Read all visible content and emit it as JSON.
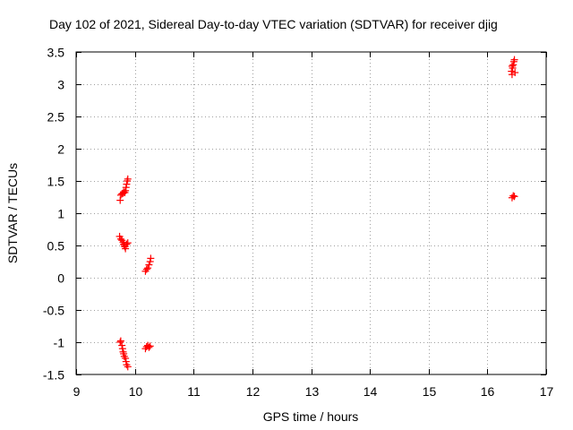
{
  "chart_data": {
    "type": "scatter",
    "title": "Day 102 of 2021, Sidereal Day-to-day VTEC variation (SDTVAR) for receiver djig",
    "xlabel": "GPS time / hours",
    "ylabel": "SDTVAR / TECUs",
    "xlim": [
      9,
      17
    ],
    "ylim": [
      -1.5,
      3.5
    ],
    "xticks": [
      "9",
      "10",
      "11",
      "12",
      "13",
      "14",
      "15",
      "16",
      "17"
    ],
    "yticks": [
      "-1.5",
      "-1",
      "-0.5",
      "0",
      "0.5",
      "1",
      "1.5",
      "2",
      "2.5",
      "3",
      "3.5"
    ],
    "grid": true,
    "marker": "plus",
    "marker_color": "#ff0000",
    "series": [
      {
        "points": [
          [
            9.75,
            1.2
          ],
          [
            9.76,
            1.28
          ],
          [
            9.78,
            1.3
          ],
          [
            9.8,
            1.31
          ],
          [
            9.81,
            1.33
          ],
          [
            9.83,
            1.32
          ],
          [
            9.84,
            1.35
          ],
          [
            9.85,
            1.4
          ],
          [
            9.86,
            1.45
          ],
          [
            9.87,
            1.5
          ],
          [
            9.88,
            1.53
          ],
          [
            9.74,
            0.64
          ],
          [
            9.76,
            0.6
          ],
          [
            9.78,
            0.58
          ],
          [
            9.8,
            0.55
          ],
          [
            9.81,
            0.52
          ],
          [
            9.82,
            0.5
          ],
          [
            9.83,
            0.48
          ],
          [
            9.84,
            0.45
          ],
          [
            9.86,
            0.52
          ],
          [
            9.88,
            0.54
          ],
          [
            9.75,
            -1.0
          ],
          [
            9.76,
            -0.98
          ],
          [
            9.78,
            -1.05
          ],
          [
            9.79,
            -1.1
          ],
          [
            9.8,
            -1.15
          ],
          [
            9.81,
            -1.18
          ],
          [
            9.82,
            -1.22
          ],
          [
            9.84,
            -1.25
          ],
          [
            9.85,
            -1.3
          ],
          [
            9.86,
            -1.35
          ],
          [
            9.88,
            -1.38
          ],
          [
            10.18,
            0.1
          ],
          [
            10.2,
            0.13
          ],
          [
            10.22,
            0.15
          ],
          [
            10.24,
            0.2
          ],
          [
            10.26,
            0.25
          ],
          [
            10.27,
            0.3
          ],
          [
            10.18,
            -1.1
          ],
          [
            10.2,
            -1.07
          ],
          [
            10.22,
            -1.05
          ],
          [
            10.24,
            -1.08
          ],
          [
            10.26,
            -1.06
          ],
          [
            16.41,
            3.2
          ],
          [
            16.42,
            3.15
          ],
          [
            16.43,
            3.25
          ],
          [
            16.44,
            3.3
          ],
          [
            16.45,
            3.35
          ],
          [
            16.46,
            3.38
          ],
          [
            16.47,
            3.18
          ],
          [
            16.42,
            3.28
          ],
          [
            16.42,
            1.24
          ],
          [
            16.44,
            1.27
          ],
          [
            16.46,
            1.26
          ]
        ]
      }
    ]
  }
}
